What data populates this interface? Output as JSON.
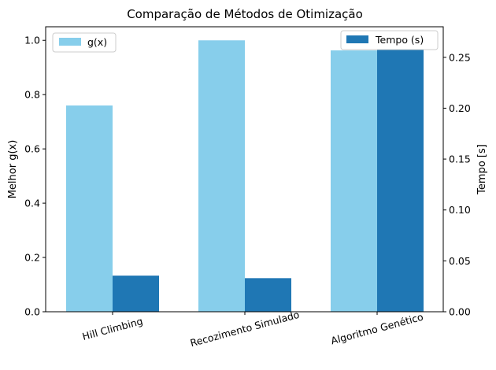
{
  "chart_data": {
    "type": "bar",
    "title": "Comparação de Métodos de Otimização",
    "categories": [
      "Hill Climbing",
      "Recozimento Simulado",
      "Algoritmo Genético"
    ],
    "xlabel": "",
    "ylabel_left": "Melhor g(x)",
    "ylabel_right": "Tempo [s]",
    "ylim_left": [
      0,
      1.05
    ],
    "ylim_right": [
      0,
      0.28
    ],
    "yticks_left": [
      "0.0",
      "0.2",
      "0.4",
      "0.6",
      "0.8",
      "1.0"
    ],
    "yticks_right": [
      "0.00",
      "0.05",
      "0.10",
      "0.15",
      "0.20",
      "0.25"
    ],
    "series": [
      {
        "name": "g(x)",
        "axis": "left",
        "color": "#87ceeb",
        "values": [
          0.76,
          1.0,
          0.963
        ]
      },
      {
        "name": "Tempo (s)",
        "axis": "right",
        "color": "#1f77b4",
        "values": [
          0.0355,
          0.033,
          0.265
        ]
      }
    ],
    "legends": [
      {
        "series": "g(x)",
        "placement": "top-left"
      },
      {
        "series": "Tempo (s)",
        "placement": "top-right"
      }
    ],
    "grid": false
  }
}
